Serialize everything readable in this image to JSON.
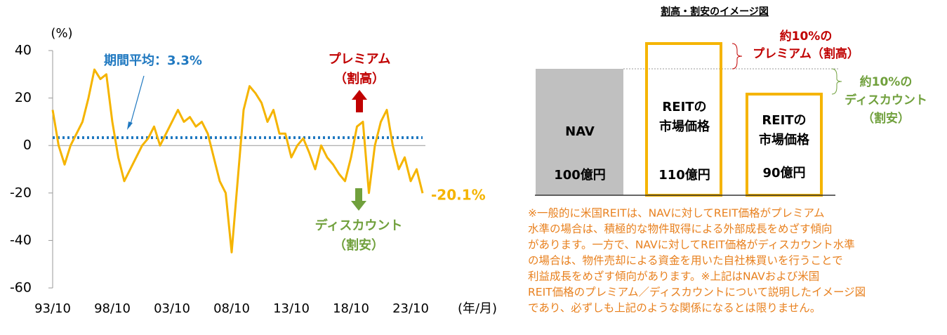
{
  "chart_data": {
    "type": "line",
    "y_unit": "(%)",
    "x_unit": "(年/月)",
    "x": [
      "93/10",
      "94/04",
      "94/10",
      "95/04",
      "95/10",
      "96/04",
      "96/10",
      "97/04",
      "97/10",
      "98/04",
      "98/10",
      "99/04",
      "99/10",
      "00/04",
      "00/10",
      "01/04",
      "01/10",
      "02/04",
      "02/10",
      "03/04",
      "03/10",
      "04/04",
      "04/10",
      "05/04",
      "05/10",
      "06/04",
      "06/10",
      "07/04",
      "07/10",
      "08/04",
      "08/10",
      "09/04",
      "09/10",
      "10/04",
      "10/10",
      "11/04",
      "11/10",
      "12/04",
      "12/10",
      "13/04",
      "13/10",
      "14/04",
      "14/10",
      "15/04",
      "15/10",
      "16/04",
      "16/10",
      "17/04",
      "17/10",
      "18/04",
      "18/10",
      "19/04",
      "19/10",
      "20/04",
      "20/10",
      "21/04",
      "21/10",
      "22/04",
      "22/10",
      "23/04",
      "23/10",
      "24/04",
      "24/10"
    ],
    "values": [
      15,
      0,
      -8,
      0,
      5,
      10,
      20,
      32,
      28,
      30,
      10,
      -5,
      -15,
      -10,
      -5,
      0,
      3,
      8,
      0,
      5,
      10,
      15,
      10,
      12,
      8,
      10,
      5,
      -5,
      -15,
      -20,
      -45,
      -15,
      15,
      25,
      22,
      18,
      10,
      15,
      5,
      5,
      -5,
      0,
      3,
      -3,
      -10,
      0,
      -5,
      -8,
      -12,
      -15,
      -5,
      8,
      10,
      -20,
      0,
      10,
      15,
      0,
      -10,
      -5,
      -15,
      -10,
      -20.1
    ],
    "value_labels": [
      null,
      null,
      null,
      null,
      null,
      null,
      null,
      null,
      null,
      null,
      null,
      null,
      null,
      null,
      null,
      null,
      null,
      null,
      null,
      null,
      null,
      null,
      null,
      null,
      null,
      null,
      null,
      null,
      null,
      null,
      null,
      null,
      null,
      null,
      null,
      null,
      null,
      null,
      null,
      null,
      null,
      null,
      null,
      null,
      null,
      null,
      null,
      null,
      null,
      null,
      null,
      null,
      null,
      null,
      null,
      null,
      null,
      null,
      null,
      null,
      null,
      null,
      "-20.1%"
    ],
    "color": "#f5b400",
    "xticks": [
      "93/10",
      "98/10",
      "03/10",
      "08/10",
      "13/10",
      "18/10",
      "23/10"
    ],
    "ylim": [
      -60,
      40
    ],
    "yticks": [
      -60,
      -40,
      -20,
      0,
      20,
      40
    ],
    "average": {
      "value": 3.3,
      "label": "期間平均：3.3%",
      "color": "#1f78c0"
    },
    "annotations": {
      "premium": [
        "プレミアム",
        "（割高）"
      ],
      "discount": [
        "ディスカウント",
        "（割安）"
      ]
    }
  },
  "diagram": {
    "title": "割高・割安のイメージ図",
    "nav": {
      "label": "NAV",
      "amount": "100億円"
    },
    "premium_box": {
      "label": [
        "REITの",
        "市場価格"
      ],
      "amount": "110億円"
    },
    "discount_box": {
      "label": [
        "REITの",
        "市場価格"
      ],
      "amount": "90億円"
    },
    "premium_note": [
      "約10%の",
      "プレミアム（割高）"
    ],
    "discount_note": [
      "約10%の",
      "ディスカウント",
      "（割安）"
    ],
    "footnote": [
      "※一般的に米国REITは、NAVに対してREIT価格がプレミアム",
      "水準の場合は、積極的な物件取得による外部成長をめざす傾向",
      "があります。一方で、NAVに対してREIT価格がディスカウント水準",
      "の場合は、物件売却による資金を用いた自社株買いを行うことで",
      "利益成長をめざす傾向があります。※上記はNAVおよび米国",
      "REIT価格のプレミアム／ディスカウントについて説明したイメージ図",
      "であり、必ずしも上記のような関係になるとは限りません。"
    ]
  }
}
